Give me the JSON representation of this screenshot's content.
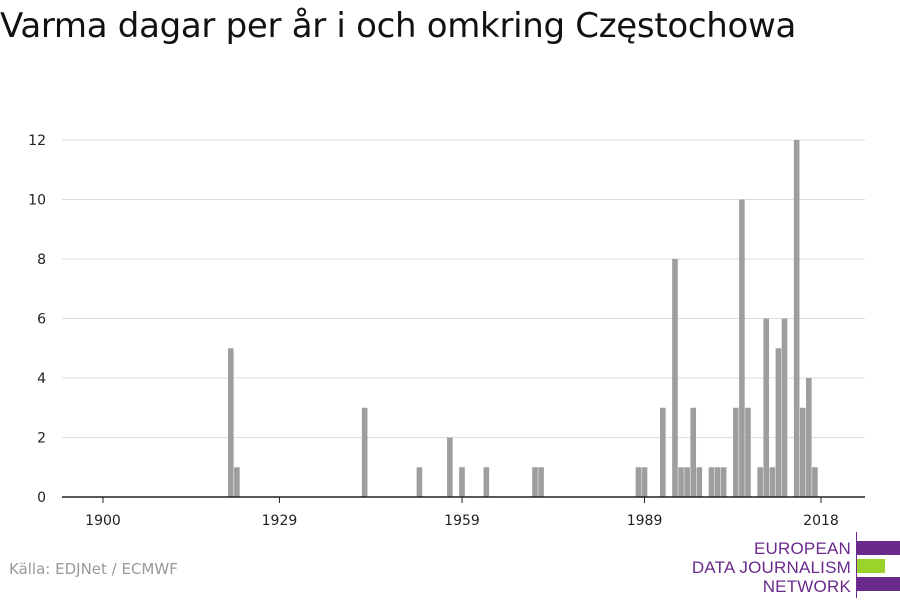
{
  "title": "Varma dagar per år i och omkring Częstochowa",
  "source": "Källa: EDJNet / ECMWF",
  "logo": {
    "lines": [
      "EUROPEAN",
      "DATA JOURNALISM",
      "NETWORK"
    ],
    "colors": [
      "#6a2a8c",
      "#9bd32a",
      "#6a2a8c"
    ]
  },
  "colors": {
    "bar": "#9e9e9e",
    "grid": "#dddddd",
    "axis": "#222222"
  },
  "chart_data": {
    "type": "bar",
    "title": "Varma dagar per år i och omkring Częstochowa",
    "xlabel": "",
    "ylabel": "",
    "xlim": [
      1900,
      2018
    ],
    "ylim": [
      0,
      12
    ],
    "xticks": [
      1900,
      1929,
      1959,
      1989,
      2018
    ],
    "yticks": [
      0,
      2,
      4,
      6,
      8,
      10,
      12
    ],
    "grid": true,
    "x": [
      1921,
      1922,
      1943,
      1952,
      1957,
      1959,
      1963,
      1971,
      1972,
      1988,
      1989,
      1992,
      1994,
      1995,
      1996,
      1997,
      1998,
      2000,
      2001,
      2002,
      2004,
      2005,
      2006,
      2008,
      2009,
      2010,
      2011,
      2012,
      2014,
      2015,
      2016,
      2017
    ],
    "values": [
      5,
      1,
      3,
      1,
      2,
      1,
      1,
      1,
      1,
      1,
      1,
      3,
      8,
      1,
      1,
      3,
      1,
      1,
      1,
      1,
      3,
      10,
      3,
      1,
      6,
      1,
      5,
      6,
      12,
      3,
      4,
      1
    ]
  }
}
